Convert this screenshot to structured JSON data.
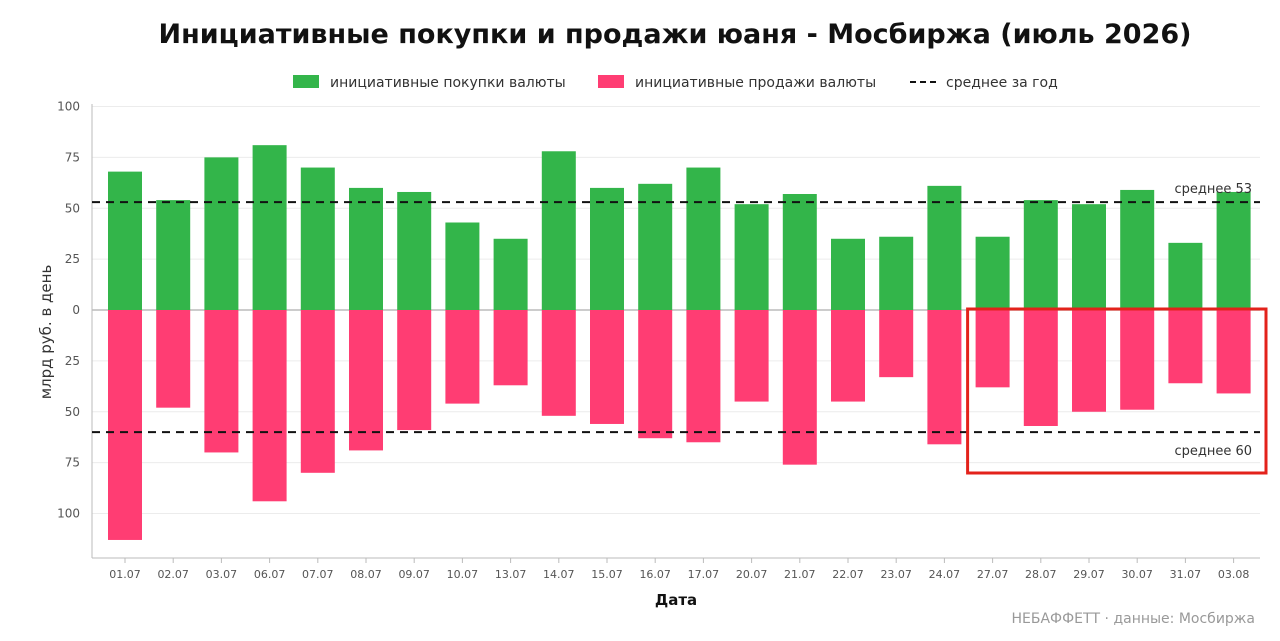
{
  "chart_data": {
    "type": "bar",
    "title": "Инициативные покупки и продажи юаня - Мосбиржа (июль 2026)",
    "xlabel": "Дата",
    "ylabel": "млрд руб. в день",
    "ylim": [
      -115,
      100
    ],
    "yticks": [
      {
        "value": 100,
        "label": "100"
      },
      {
        "value": 75,
        "label": "75"
      },
      {
        "value": 50,
        "label": "50"
      },
      {
        "value": 25,
        "label": "25"
      },
      {
        "value": 0,
        "label": "0"
      },
      {
        "value": -25,
        "label": "25"
      },
      {
        "value": -50,
        "label": "50"
      },
      {
        "value": -75,
        "label": "75"
      },
      {
        "value": -100,
        "label": "100"
      }
    ],
    "grid": true,
    "legend_position": "top-center",
    "categories": [
      "01.07",
      "02.07",
      "03.07",
      "06.07",
      "07.07",
      "08.07",
      "09.07",
      "10.07",
      "13.07",
      "14.07",
      "15.07",
      "16.07",
      "17.07",
      "20.07",
      "21.07",
      "22.07",
      "23.07",
      "24.07",
      "27.07",
      "28.07",
      "29.07",
      "30.07",
      "31.07",
      "03.08"
    ],
    "series": [
      {
        "name": "инициативные покупки валюты",
        "color": "#33b54a",
        "values": [
          68,
          54,
          75,
          81,
          70,
          60,
          58,
          43,
          35,
          78,
          60,
          62,
          70,
          52,
          57,
          35,
          36,
          61,
          36,
          54,
          52,
          59,
          33,
          58
        ]
      },
      {
        "name": "инициативные продажи валюты",
        "color": "#ff3d73",
        "values": [
          -113,
          -48,
          -70,
          -94,
          -80,
          -69,
          -59,
          -46,
          -37,
          -52,
          -56,
          -63,
          -65,
          -45,
          -76,
          -45,
          -33,
          -66,
          -38,
          -57,
          -50,
          -49,
          -36,
          -41
        ]
      }
    ],
    "reference_lines": [
      {
        "name": "среднее за год",
        "value": 53,
        "label": "среднее 53"
      },
      {
        "value": -60,
        "label": "среднее 60"
      }
    ],
    "highlight": {
      "from": "27.07",
      "to": "03.08",
      "color": "#e3221b"
    }
  },
  "source_note": "НЕБАФФЕТТ · данные: Мосбиржа"
}
